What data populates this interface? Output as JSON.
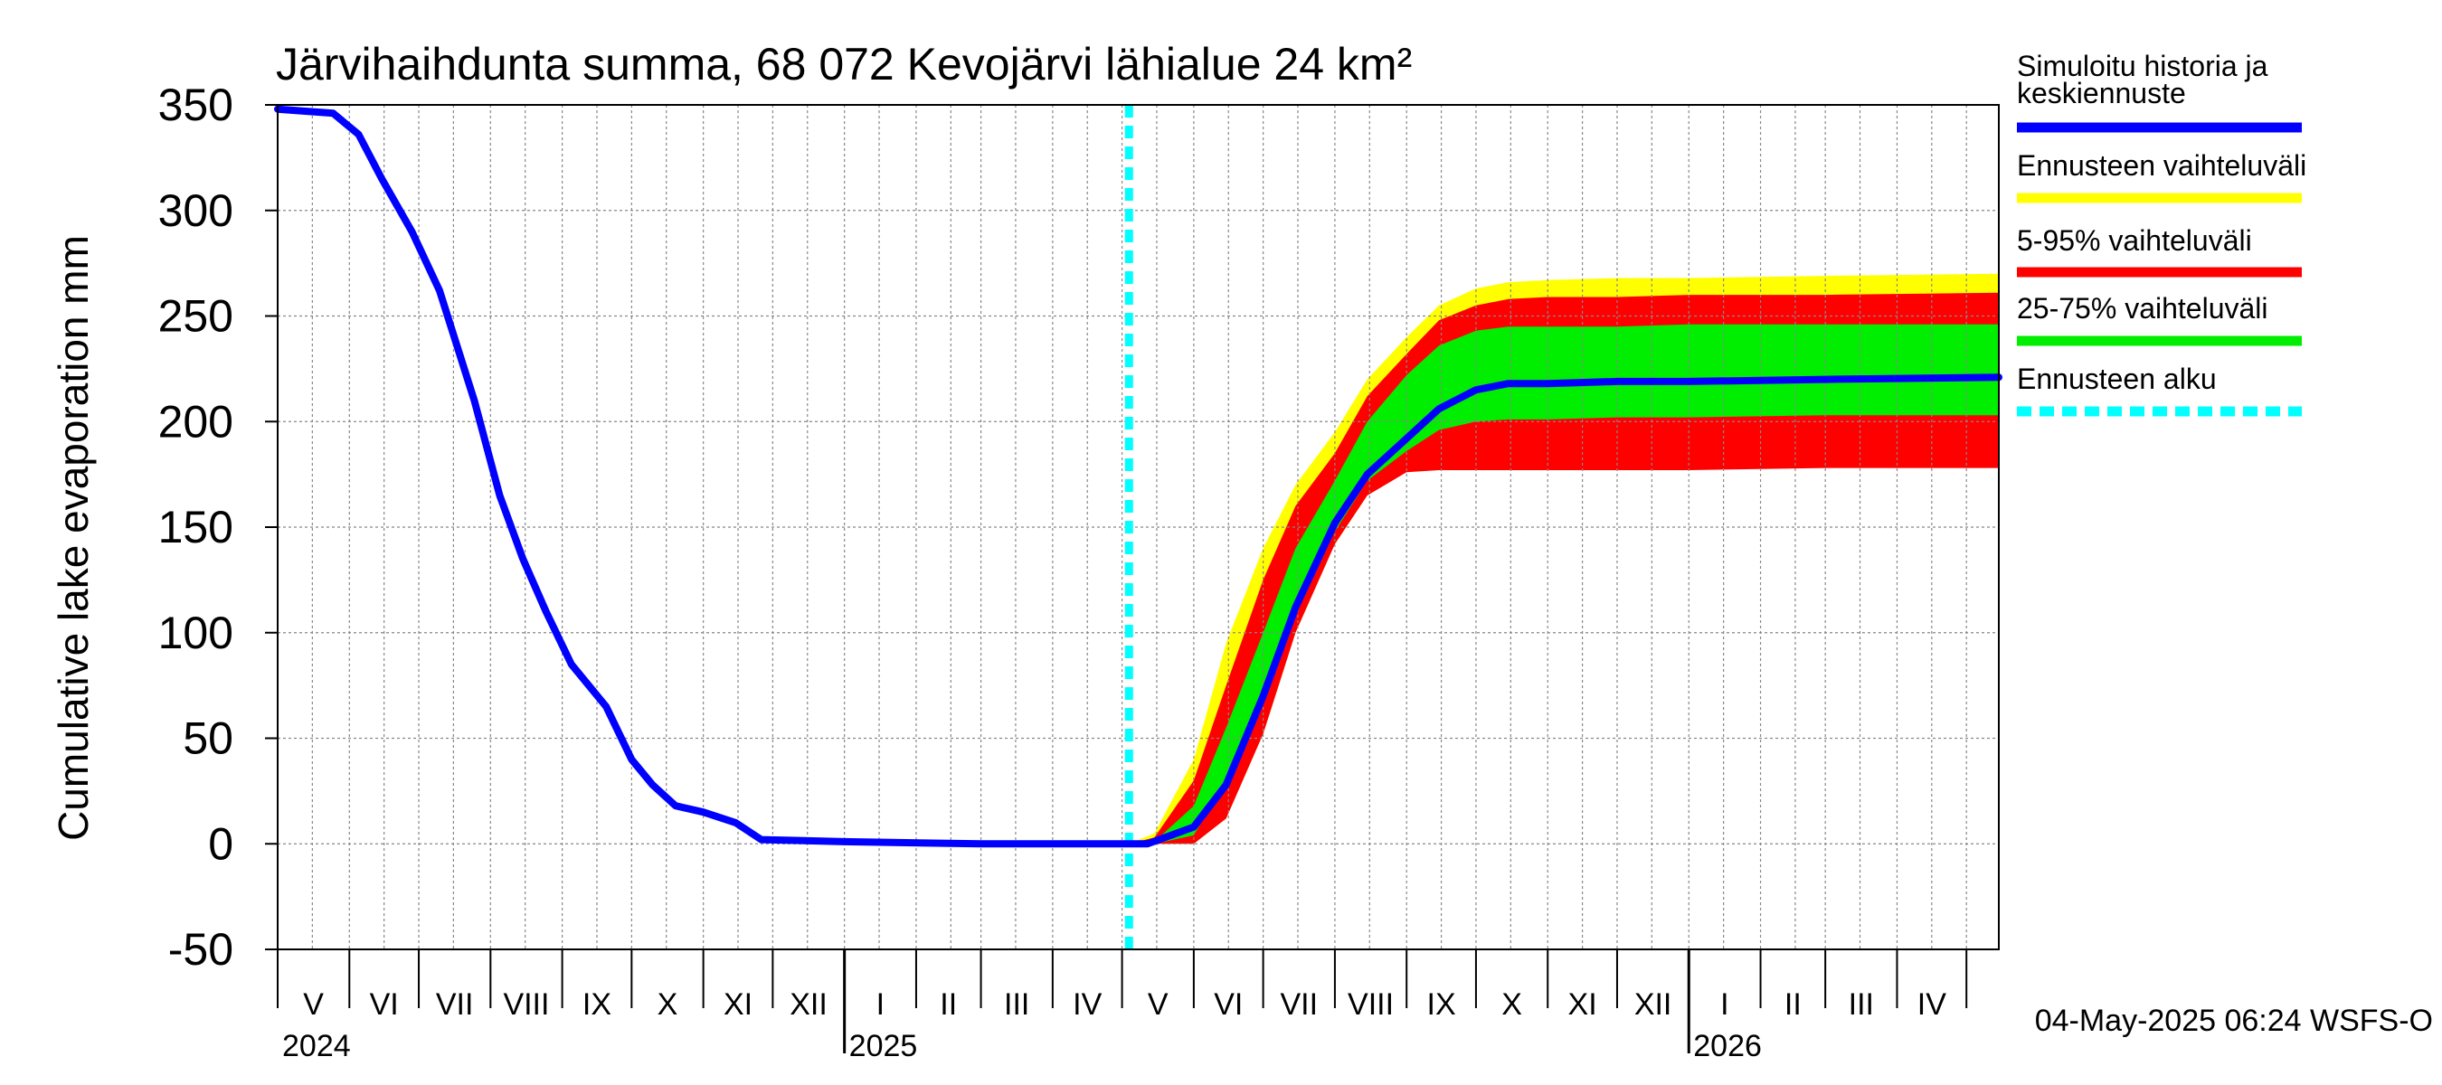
{
  "chart_data": {
    "type": "area",
    "title": "Järvihaihdunta summa, 68 072 Kevojärvi lähialue 24 km²",
    "ylabel": "Cumulative lake evaporation   mm",
    "xlabel": "",
    "ylim": [
      -50,
      350
    ],
    "yticks": [
      -50,
      0,
      50,
      100,
      150,
      200,
      250,
      300,
      350
    ],
    "xlim": [
      "2024-05-01",
      "2026-05-15"
    ],
    "grid": true,
    "legend_position": "right",
    "month_labels": [
      "V",
      "VI",
      "VII",
      "VIII",
      "IX",
      "X",
      "XI",
      "XII",
      "I",
      "II",
      "III",
      "IV",
      "V",
      "VI",
      "VII",
      "VIII",
      "IX",
      "X",
      "XI",
      "XII",
      "I",
      "II",
      "III",
      "IV"
    ],
    "year_labels": [
      {
        "label": "2024",
        "date": "2024-05-01"
      },
      {
        "label": "2025",
        "date": "2025-01-01"
      },
      {
        "label": "2026",
        "date": "2026-01-01"
      }
    ],
    "forecast_start": "2025-05-04",
    "bands": [
      {
        "name": "Ennusteen vaihteluväli",
        "color": "#ffff00",
        "x": [
          "2025-05-04",
          "2025-05-15",
          "2025-06-01",
          "2025-06-15",
          "2025-07-01",
          "2025-07-15",
          "2025-08-01",
          "2025-08-15",
          "2025-09-01",
          "2025-09-15",
          "2025-10-01",
          "2025-10-15",
          "2025-11-01",
          "2025-12-01",
          "2026-01-01",
          "2026-03-01",
          "2026-05-15"
        ],
        "upper": [
          0,
          5,
          40,
          95,
          140,
          170,
          195,
          220,
          240,
          255,
          263,
          266,
          267,
          268,
          268,
          269,
          270
        ],
        "lower": [
          0,
          0,
          0,
          12,
          52,
          100,
          142,
          165,
          178,
          186,
          188,
          189,
          189,
          189,
          190,
          190,
          190
        ]
      },
      {
        "name": "5-95% vaihteluväli",
        "color": "#ff0000",
        "x": [
          "2025-05-04",
          "2025-05-15",
          "2025-06-01",
          "2025-06-15",
          "2025-07-01",
          "2025-07-15",
          "2025-08-01",
          "2025-08-15",
          "2025-09-01",
          "2025-09-15",
          "2025-10-01",
          "2025-10-15",
          "2025-11-01",
          "2025-12-01",
          "2026-01-01",
          "2026-03-01",
          "2026-05-15"
        ],
        "upper": [
          0,
          3,
          30,
          75,
          125,
          160,
          185,
          212,
          232,
          248,
          255,
          258,
          259,
          259,
          260,
          260,
          261
        ],
        "lower": [
          0,
          0,
          0,
          12,
          52,
          100,
          142,
          165,
          176,
          177,
          177,
          177,
          177,
          177,
          177,
          178,
          178
        ]
      },
      {
        "name": "25-75% vaihteluväli",
        "color": "#00ee00",
        "x": [
          "2025-05-04",
          "2025-05-15",
          "2025-06-01",
          "2025-06-15",
          "2025-07-01",
          "2025-07-15",
          "2025-08-01",
          "2025-08-15",
          "2025-09-01",
          "2025-09-15",
          "2025-10-01",
          "2025-10-15",
          "2025-11-01",
          "2025-12-01",
          "2026-01-01",
          "2026-03-01",
          "2026-05-15"
        ],
        "upper": [
          0,
          1,
          18,
          55,
          100,
          140,
          172,
          200,
          222,
          236,
          243,
          245,
          245,
          245,
          246,
          246,
          246
        ],
        "lower": [
          0,
          0,
          4,
          30,
          72,
          110,
          148,
          172,
          186,
          196,
          200,
          201,
          201,
          202,
          202,
          203,
          203
        ]
      }
    ],
    "series": [
      {
        "name": "Simuloitu historia ja keskiennuste",
        "color": "#0000ff",
        "x": [
          "2024-05-01",
          "2024-05-25",
          "2024-06-05",
          "2024-06-15",
          "2024-06-28",
          "2024-07-10",
          "2024-07-25",
          "2024-08-05",
          "2024-08-15",
          "2024-08-25",
          "2024-09-05",
          "2024-09-20",
          "2024-10-01",
          "2024-10-10",
          "2024-10-20",
          "2024-11-01",
          "2024-11-15",
          "2024-11-26",
          "2025-01-01",
          "2025-03-01",
          "2025-05-04",
          "2025-05-12",
          "2025-06-01",
          "2025-06-15",
          "2025-07-01",
          "2025-07-15",
          "2025-08-01",
          "2025-08-15",
          "2025-09-01",
          "2025-09-15",
          "2025-10-01",
          "2025-10-15",
          "2025-11-01",
          "2025-12-01",
          "2026-01-01",
          "2026-03-01",
          "2026-05-15"
        ],
        "values": [
          348,
          346,
          336,
          315,
          290,
          262,
          210,
          165,
          135,
          110,
          85,
          65,
          40,
          28,
          18,
          15,
          10,
          2,
          1,
          0,
          0,
          0,
          8,
          28,
          70,
          112,
          152,
          175,
          192,
          206,
          215,
          218,
          218,
          219,
          219,
          220,
          221
        ]
      }
    ]
  },
  "legend": {
    "items": [
      {
        "label": "Simuloitu historia ja keskiennuste",
        "color": "#0000ff",
        "style": "solid"
      },
      {
        "label": "Ennusteen vaihteluväli",
        "color": "#ffff00",
        "style": "solid"
      },
      {
        "label": "5-95% vaihteluväli",
        "color": "#ff0000",
        "style": "solid"
      },
      {
        "label": "25-75% vaihteluväli",
        "color": "#00ee00",
        "style": "solid"
      },
      {
        "label": "Ennusteen alku",
        "color": "#00ffff",
        "style": "dashed"
      }
    ]
  },
  "footer": {
    "timestamp": "04-May-2025 06:24 WSFS-O"
  }
}
